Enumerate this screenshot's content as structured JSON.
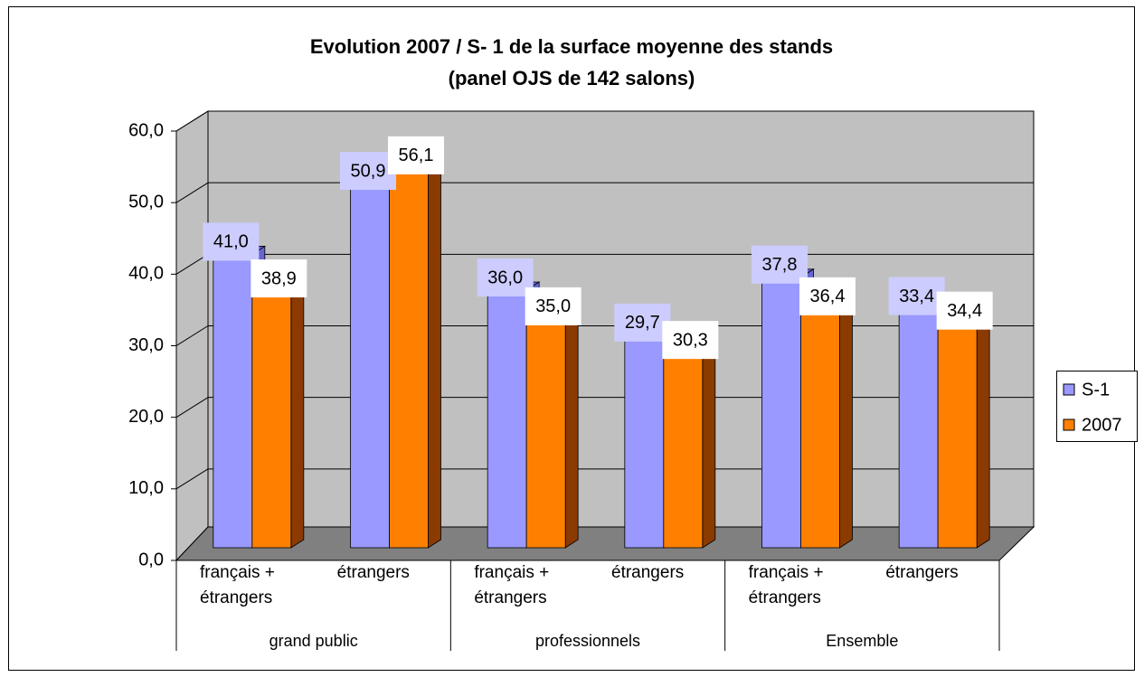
{
  "chart_data": {
    "type": "bar3d",
    "title": [
      "Evolution 2007 / S- 1 de la surface moyenne des stands",
      "(panel OJS de 142 salons)"
    ],
    "categories": [
      "français + étrangers",
      "étrangers",
      "français + étrangers",
      "étrangers",
      "français + étrangers",
      "étrangers"
    ],
    "groups": [
      "grand public",
      "professionnels",
      "Ensemble"
    ],
    "series": [
      {
        "name": "S-1",
        "color": "#9999ff",
        "side_color": "#6666cc",
        "label_bg": "#ccccff",
        "values": [
          41.0,
          50.9,
          36.0,
          29.7,
          37.8,
          33.4
        ],
        "value_labels": [
          "41,0",
          "50,9",
          "36,0",
          "29,7",
          "37,8",
          "33,4"
        ]
      },
      {
        "name": "2007",
        "color": "#ff8000",
        "side_color": "#8b3a00",
        "label_bg": "#ffffff",
        "values": [
          38.9,
          56.1,
          35.0,
          30.3,
          36.4,
          34.4
        ],
        "value_labels": [
          "38,9",
          "56,1",
          "35,0",
          "30,3",
          "36,4",
          "34,4"
        ]
      }
    ],
    "ylim": [
      0,
      60
    ],
    "yticks": [
      {
        "value": 0,
        "label": "0,0"
      },
      {
        "value": 10,
        "label": "10,0"
      },
      {
        "value": 20,
        "label": "20,0"
      },
      {
        "value": 30,
        "label": "30,0"
      },
      {
        "value": 40,
        "label": "40,0"
      },
      {
        "value": 50,
        "label": "50,0"
      },
      {
        "value": 60,
        "label": "60,0"
      }
    ],
    "grid": true,
    "legend": "right"
  }
}
